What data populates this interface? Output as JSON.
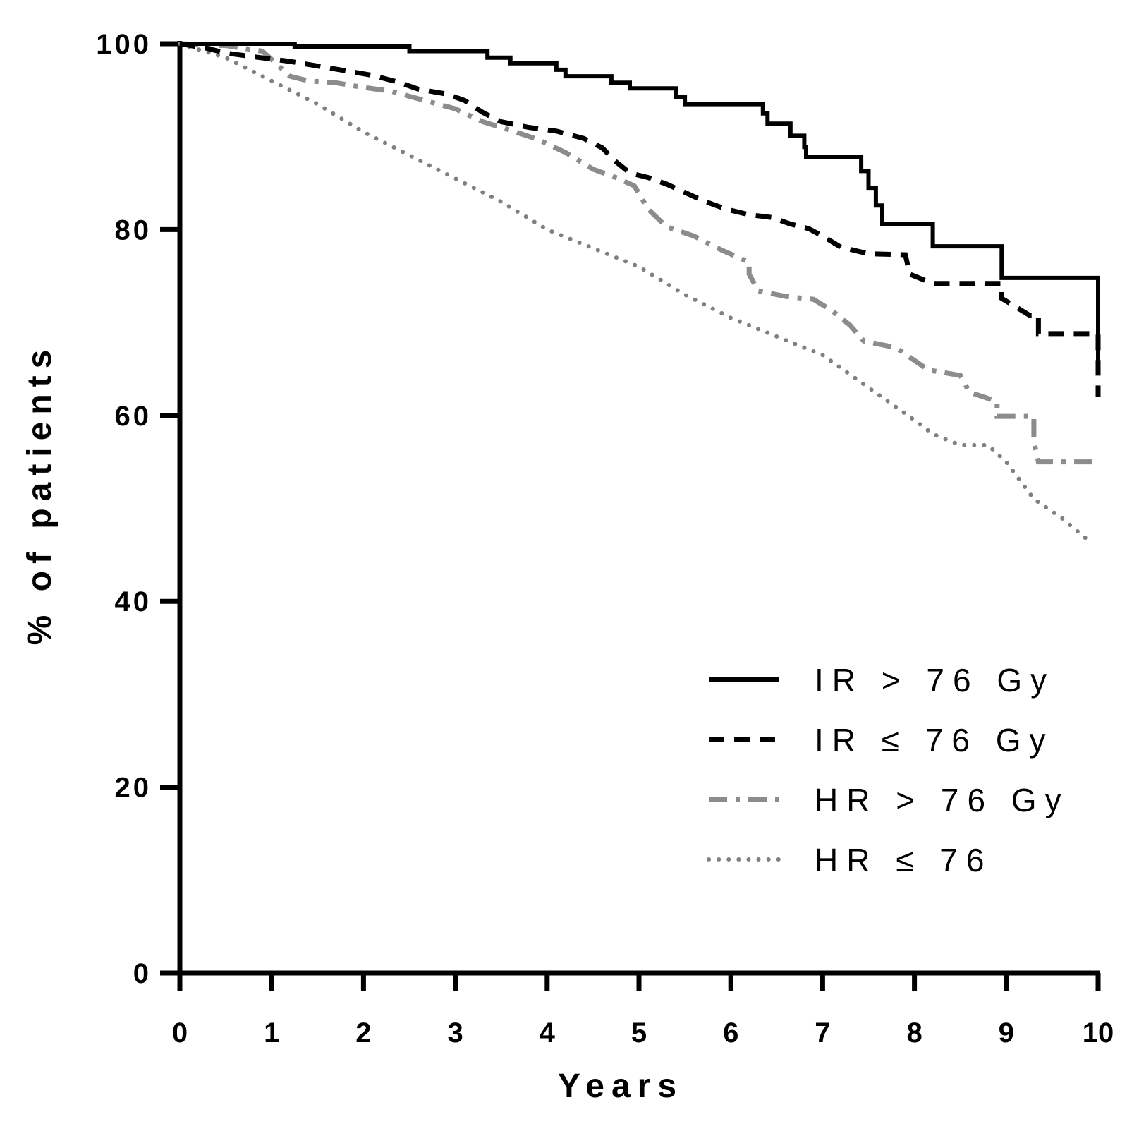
{
  "chart_data": {
    "type": "line",
    "subtype": "kaplan-meier step curves",
    "title": "",
    "xlabel": "Years",
    "ylabel": "% of patients",
    "xlim": [
      0,
      10
    ],
    "ylim": [
      0,
      100
    ],
    "xticks": [
      "0",
      "1",
      "2",
      "3",
      "4",
      "5",
      "6",
      "7",
      "8",
      "9",
      "10"
    ],
    "yticks": [
      "0",
      "20",
      "40",
      "60",
      "80",
      "100"
    ],
    "grid": false,
    "legend_position": "bottom-right",
    "colors": {
      "axis": "#000000",
      "ir_gt": "#000000",
      "ir_le": "#000000",
      "hr_gt": "#8c8c8c",
      "hr_le": "#808080"
    },
    "series": [
      {
        "key": "ir_gt",
        "name": "IR > 76 Gy",
        "style": "solid",
        "points": [
          [
            0,
            100
          ],
          [
            1.25,
            100
          ],
          [
            1.25,
            99.7
          ],
          [
            2.5,
            99.7
          ],
          [
            2.5,
            99.2
          ],
          [
            3.35,
            99.2
          ],
          [
            3.35,
            98.5
          ],
          [
            3.6,
            98.5
          ],
          [
            3.6,
            97.9
          ],
          [
            4.1,
            97.9
          ],
          [
            4.1,
            97.2
          ],
          [
            4.2,
            97.2
          ],
          [
            4.2,
            96.5
          ],
          [
            4.7,
            96.5
          ],
          [
            4.7,
            95.8
          ],
          [
            4.9,
            95.8
          ],
          [
            4.9,
            95.2
          ],
          [
            5.4,
            95.2
          ],
          [
            5.4,
            94.3
          ],
          [
            5.5,
            94.3
          ],
          [
            5.5,
            93.5
          ],
          [
            6.35,
            93.5
          ],
          [
            6.35,
            92.5
          ],
          [
            6.4,
            92.5
          ],
          [
            6.4,
            91.4
          ],
          [
            6.65,
            91.4
          ],
          [
            6.65,
            90.1
          ],
          [
            6.8,
            90.1
          ],
          [
            6.8,
            88.9
          ],
          [
            6.82,
            88.9
          ],
          [
            6.82,
            87.8
          ],
          [
            7.42,
            87.8
          ],
          [
            7.42,
            86.3
          ],
          [
            7.5,
            86.3
          ],
          [
            7.5,
            84.5
          ],
          [
            7.58,
            84.5
          ],
          [
            7.58,
            82.6
          ],
          [
            7.65,
            82.6
          ],
          [
            7.65,
            80.6
          ],
          [
            8.2,
            80.6
          ],
          [
            8.2,
            78.2
          ],
          [
            8.95,
            78.2
          ],
          [
            8.95,
            74.8
          ],
          [
            10.0,
            74.8
          ],
          [
            10.0,
            65.0
          ]
        ]
      },
      {
        "key": "ir_le",
        "name": "IR ≤ 76 Gy",
        "style": "dashed",
        "points": [
          [
            0,
            100
          ],
          [
            0.3,
            99.5
          ],
          [
            0.5,
            99.0
          ],
          [
            0.8,
            98.6
          ],
          [
            1.2,
            98.1
          ],
          [
            1.5,
            97.6
          ],
          [
            1.8,
            97.1
          ],
          [
            2.1,
            96.6
          ],
          [
            2.4,
            95.8
          ],
          [
            2.6,
            95.1
          ],
          [
            2.9,
            94.6
          ],
          [
            3.1,
            93.9
          ],
          [
            3.3,
            92.6
          ],
          [
            3.5,
            91.6
          ],
          [
            3.8,
            91.0
          ],
          [
            4.1,
            90.6
          ],
          [
            4.4,
            89.8
          ],
          [
            4.6,
            88.8
          ],
          [
            4.75,
            87.3
          ],
          [
            4.9,
            86.1
          ],
          [
            5.1,
            85.6
          ],
          [
            5.3,
            84.9
          ],
          [
            5.5,
            84.0
          ],
          [
            5.7,
            83.1
          ],
          [
            5.95,
            82.2
          ],
          [
            6.2,
            81.6
          ],
          [
            6.45,
            81.3
          ],
          [
            6.65,
            80.6
          ],
          [
            6.85,
            80.1
          ],
          [
            7.0,
            79.3
          ],
          [
            7.2,
            78.1
          ],
          [
            7.5,
            77.4
          ],
          [
            7.9,
            77.3
          ],
          [
            7.95,
            75.2
          ],
          [
            8.2,
            74.2
          ],
          [
            8.95,
            74.2
          ],
          [
            8.95,
            72.6
          ],
          [
            9.25,
            70.8
          ],
          [
            9.35,
            70.8
          ],
          [
            9.35,
            68.8
          ],
          [
            10.0,
            68.8
          ],
          [
            10.0,
            62.0
          ]
        ]
      },
      {
        "key": "hr_gt",
        "name": "HR > 76 Gy",
        "style": "dash-dot",
        "points": [
          [
            0,
            100
          ],
          [
            0.5,
            99.8
          ],
          [
            0.9,
            99.2
          ],
          [
            1.2,
            96.5
          ],
          [
            1.4,
            96.0
          ],
          [
            1.7,
            95.8
          ],
          [
            2.0,
            95.3
          ],
          [
            2.3,
            94.9
          ],
          [
            2.7,
            93.8
          ],
          [
            3.0,
            93.0
          ],
          [
            3.3,
            91.6
          ],
          [
            3.6,
            90.7
          ],
          [
            3.9,
            89.7
          ],
          [
            4.2,
            88.3
          ],
          [
            4.5,
            86.5
          ],
          [
            4.75,
            85.6
          ],
          [
            4.95,
            84.7
          ],
          [
            5.1,
            82.2
          ],
          [
            5.3,
            80.3
          ],
          [
            5.6,
            79.3
          ],
          [
            5.9,
            77.8
          ],
          [
            6.2,
            76.5
          ],
          [
            6.2,
            75.2
          ],
          [
            6.3,
            73.4
          ],
          [
            6.6,
            72.8
          ],
          [
            6.9,
            72.5
          ],
          [
            7.1,
            71.3
          ],
          [
            7.3,
            69.7
          ],
          [
            7.45,
            68.0
          ],
          [
            7.8,
            67.3
          ],
          [
            7.9,
            66.6
          ],
          [
            8.15,
            64.9
          ],
          [
            8.5,
            64.3
          ],
          [
            8.6,
            62.5
          ],
          [
            8.9,
            61.5
          ],
          [
            8.9,
            59.9
          ],
          [
            9.3,
            59.9
          ],
          [
            9.3,
            57.2
          ],
          [
            9.35,
            55.0
          ],
          [
            10.0,
            55.0
          ]
        ]
      },
      {
        "key": "hr_le",
        "name": "HR ≤ 76",
        "style": "dotted",
        "points": [
          [
            0,
            100
          ],
          [
            0.5,
            98.5
          ],
          [
            1.0,
            96.0
          ],
          [
            1.5,
            93.5
          ],
          [
            2.0,
            90.5
          ],
          [
            2.5,
            88.0
          ],
          [
            3.0,
            85.5
          ],
          [
            3.5,
            83.0
          ],
          [
            4.0,
            80.0
          ],
          [
            4.5,
            78.0
          ],
          [
            5.0,
            76.0
          ],
          [
            5.5,
            73.0
          ],
          [
            6.0,
            70.5
          ],
          [
            6.5,
            68.5
          ],
          [
            7.0,
            66.5
          ],
          [
            7.5,
            63.0
          ],
          [
            8.0,
            59.5
          ],
          [
            8.2,
            58.0
          ],
          [
            8.5,
            56.8
          ],
          [
            8.8,
            56.8
          ],
          [
            9.0,
            55.0
          ],
          [
            9.3,
            51.0
          ],
          [
            9.6,
            49.0
          ],
          [
            9.9,
            46.5
          ]
        ]
      }
    ]
  }
}
